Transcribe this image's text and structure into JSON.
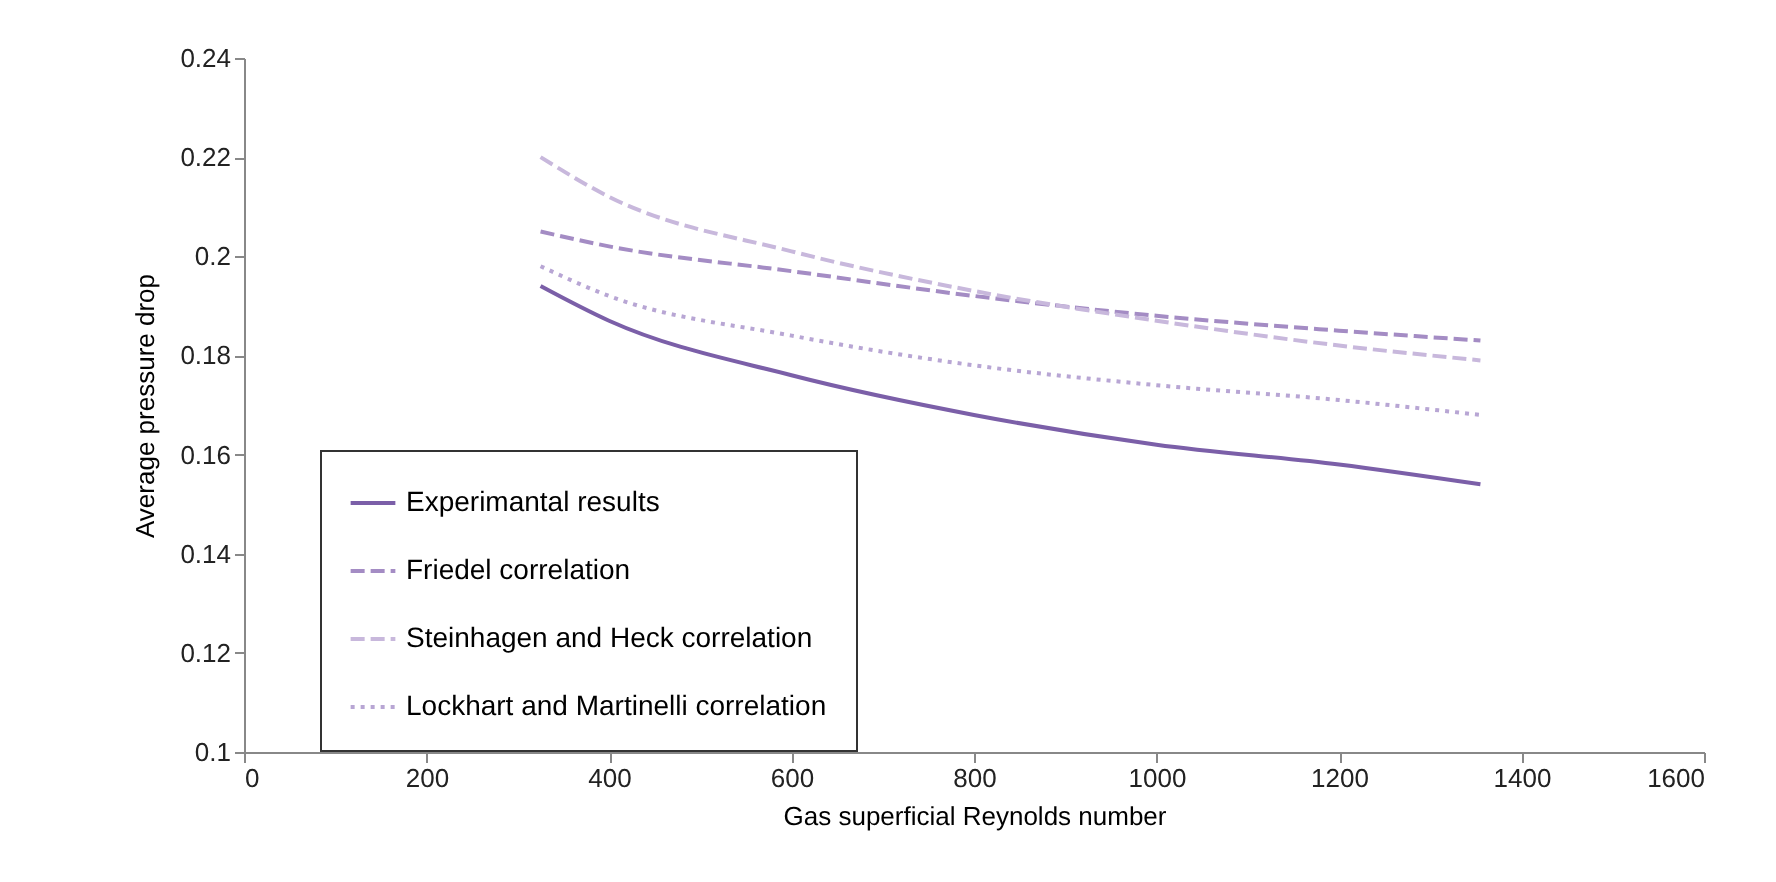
{
  "chart_data": {
    "type": "line",
    "xlabel": "Gas superficial Reynolds number",
    "ylabel": "Average pressure drop",
    "x": [
      325,
      400,
      600,
      800,
      1000,
      1200,
      1355
    ],
    "series": [
      {
        "name": "Experimantal results",
        "color": "#7b5fa8",
        "line_style": "solid",
        "values": [
          0.194,
          0.187,
          0.176,
          0.168,
          0.162,
          0.158,
          0.154
        ]
      },
      {
        "name": "Friedel correlation",
        "color": "#a48cc4",
        "line_style": "dashed",
        "values": [
          0.205,
          0.202,
          0.197,
          0.192,
          0.188,
          0.185,
          0.183
        ]
      },
      {
        "name": "Steinhagen and Heck correlation",
        "color": "#c8b8dc",
        "line_style": "dashed",
        "values": [
          0.22,
          0.212,
          0.201,
          0.193,
          0.187,
          0.182,
          0.179
        ]
      },
      {
        "name": "Lockhart and Martinelli correlation",
        "color": "#b8a6d4",
        "line_style": "dotted",
        "values": [
          0.198,
          0.192,
          0.184,
          0.178,
          0.174,
          0.171,
          0.168
        ]
      }
    ],
    "xlim": [
      0,
      1600
    ],
    "xticks": [
      0,
      200,
      400,
      600,
      800,
      1000,
      1200,
      1400,
      1600
    ],
    "ylim": [
      0.1,
      0.24
    ],
    "yticks": [
      0.1,
      0.12,
      0.14,
      0.16,
      0.18,
      0.2,
      0.22,
      0.24
    ],
    "grid": false,
    "legend": "bottom left",
    "marker": "none"
  }
}
